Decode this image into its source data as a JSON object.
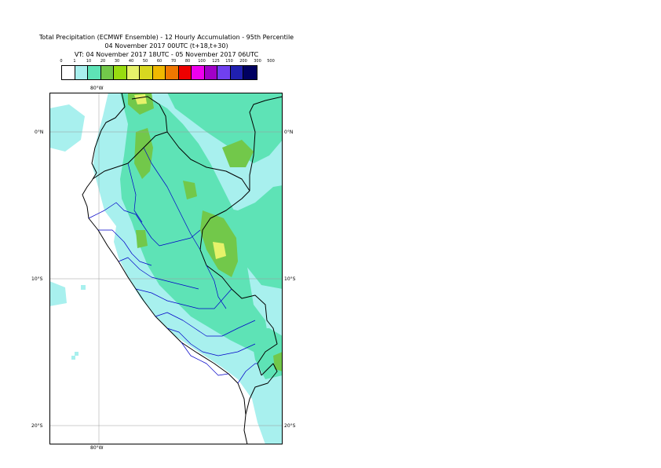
{
  "title": {
    "line1": "Total Precipitation (ECMWF Ensemble) - 12 Hourly Accumulation - 95th Percentile",
    "line2": "04 November 2017 00UTC (t+18,t+30)",
    "line3": "VT: 04 November 2017 18UTC - 05 November 2017 06UTC"
  },
  "legend": {
    "labels": [
      "0",
      "1",
      "10",
      "20",
      "30",
      "40",
      "50",
      "60",
      "70",
      "80",
      "100",
      "125",
      "150",
      "200",
      "300",
      "500"
    ],
    "colors": [
      "#ffffff",
      "#a8f0ee",
      "#5ee3b6",
      "#72c84a",
      "#98dc10",
      "#e6f26a",
      "#d8d820",
      "#f0b800",
      "#f07800",
      "#ee0000",
      "#ee00ee",
      "#a000c8",
      "#7040f0",
      "#2020b0",
      "#000060"
    ]
  },
  "axes": {
    "lon_top": "80°W",
    "lon_bottom": "80°W",
    "lat_left": [
      "0°N",
      "10°S",
      "20°S"
    ],
    "lat_right": [
      "0°N",
      "10°S",
      "20°S"
    ]
  },
  "map_colors": {
    "ocean": "#ffffff",
    "light": "#a8f0ee",
    "mid": "#5ee3b6",
    "green": "#72c84a",
    "yellow": "#e6f26a",
    "coast": "#000000",
    "admin": "#0000c8",
    "grid": "#9a9a9a"
  }
}
